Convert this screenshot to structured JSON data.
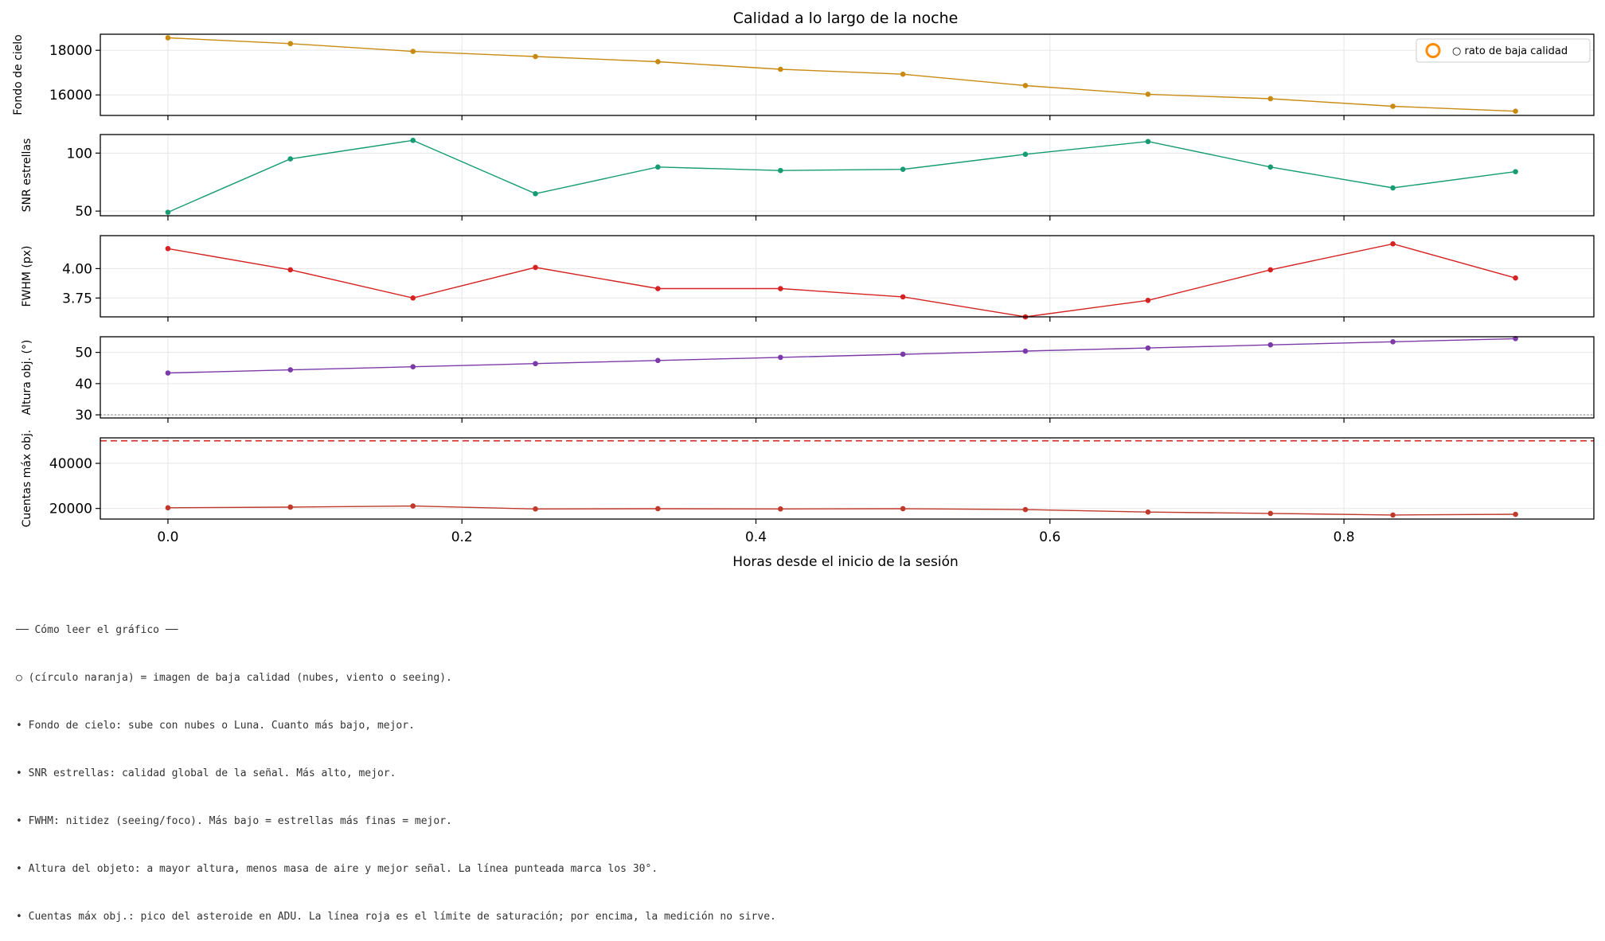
{
  "chart_data": {
    "type": "line",
    "title": "Calidad a lo largo de la noche",
    "xlabel": "Horas desde el inicio de la sesión",
    "xlim": [
      -0.046,
      0.97
    ],
    "xticks": [
      0.0,
      0.2,
      0.4,
      0.6,
      0.8
    ],
    "xtick_labels": [
      "0.0",
      "0.2",
      "0.4",
      "0.6",
      "0.8"
    ],
    "x": [
      0.0,
      0.0833,
      0.1667,
      0.25,
      0.3333,
      0.4167,
      0.5,
      0.5833,
      0.6667,
      0.75,
      0.8333,
      0.9167
    ],
    "grid": true,
    "legend": {
      "label": "○ rato de baja calidad",
      "placement": "top-right",
      "marker_color": "#ff8c00"
    },
    "panels": [
      {
        "ylabel": "Fondo de cielo",
        "color": "#c98a12",
        "ylim": [
          15080,
          18720
        ],
        "yticks": [
          16000,
          18000
        ],
        "ytick_labels": [
          "16000",
          "18000"
        ],
        "values": [
          18560,
          18300,
          17950,
          17720,
          17490,
          17150,
          16930,
          16420,
          16030,
          15830,
          15490,
          15270
        ]
      },
      {
        "ylabel": "SNR estrellas",
        "color": "#169c73",
        "ylim": [
          46,
          116
        ],
        "yticks": [
          50,
          100
        ],
        "ytick_labels": [
          "50",
          "100"
        ],
        "values": [
          49,
          95,
          111,
          65,
          88,
          85,
          86,
          99,
          110,
          88,
          70,
          84
        ]
      },
      {
        "ylabel": "FWHM (px)",
        "color": "#d62222",
        "ylim": [
          3.59,
          4.28
        ],
        "yticks": [
          3.75,
          4.0
        ],
        "ytick_labels": [
          "3.75",
          "4.00"
        ],
        "values": [
          4.17,
          3.99,
          3.75,
          4.01,
          3.83,
          3.83,
          3.76,
          3.59,
          3.73,
          3.99,
          4.21,
          3.92
        ]
      },
      {
        "ylabel": "Altura obj. (°)",
        "color": "#7b3aa8",
        "ylim": [
          29,
          55
        ],
        "yticks": [
          30,
          40,
          50
        ],
        "ytick_labels": [
          "30",
          "40",
          "50"
        ],
        "values": [
          43.4,
          44.4,
          45.4,
          46.4,
          47.4,
          48.4,
          49.4,
          50.4,
          51.4,
          52.4,
          53.4,
          54.4
        ],
        "reference_line": {
          "value": 30,
          "style": "dotted",
          "color": "#999999"
        }
      },
      {
        "ylabel": "Cuentas máx obj.",
        "color": "#c0392b",
        "ylim": [
          15300,
          51300
        ],
        "yticks": [
          20000,
          40000
        ],
        "ytick_labels": [
          "20000",
          "40000"
        ],
        "values": [
          20300,
          20600,
          21100,
          19800,
          19900,
          19800,
          19900,
          19500,
          18400,
          17800,
          17100,
          17400
        ],
        "reference_line": {
          "value": 50000,
          "style": "dashed",
          "color": "#d62728"
        }
      }
    ]
  },
  "notes": [
    "── Cómo leer el gráfico ──",
    "○ (círculo naranja) = imagen de baja calidad (nubes, viento o seeing).",
    "• Fondo de cielo: sube con nubes o Luna. Cuanto más bajo, mejor.",
    "• SNR estrellas: calidad global de la señal. Más alto, mejor.",
    "• FWHM: nitidez (seeing/foco). Más bajo = estrellas más finas = mejor.",
    "• Altura del objeto: a mayor altura, menos masa de aire y mejor señal. La línea punteada marca los 30°.",
    "• Cuentas máx obj.: pico del asteroide en ADU. La línea roja es el límite de saturación; por encima, la medición no sirve."
  ]
}
